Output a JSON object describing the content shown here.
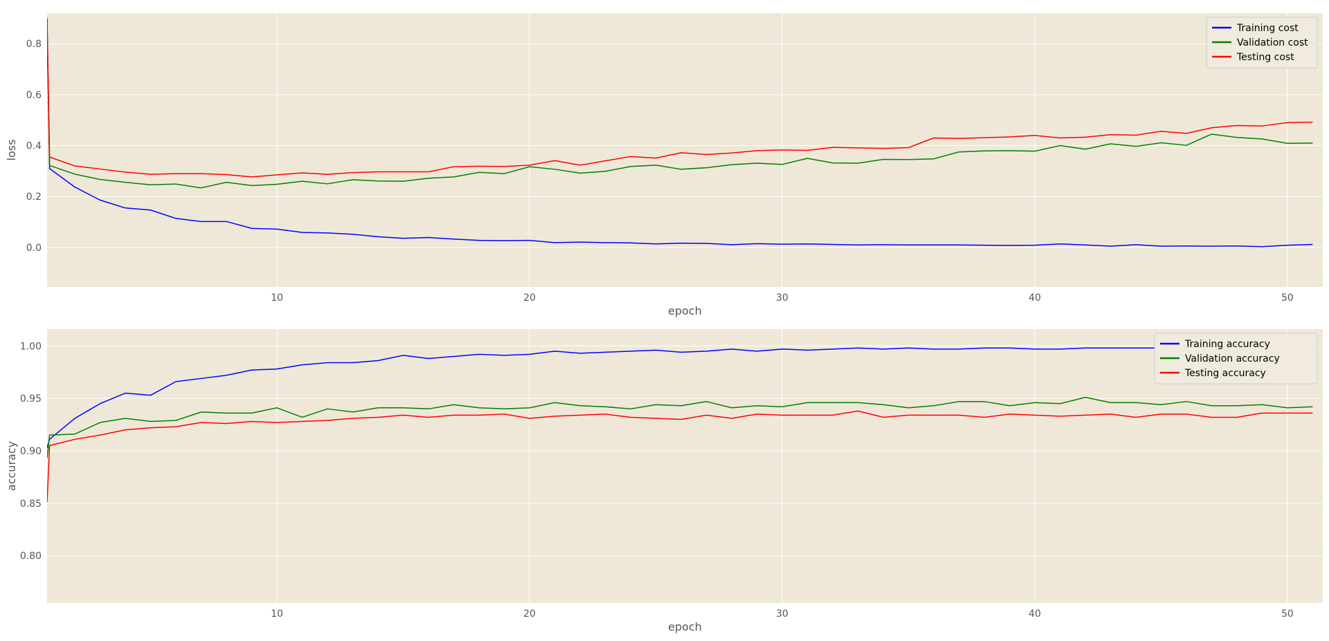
{
  "chart_data": [
    {
      "type": "line",
      "xlabel": "epoch",
      "ylabel": "loss",
      "xlim": [
        0.9,
        51.4
      ],
      "ylim": [
        -0.155,
        0.92
      ],
      "xticks": [
        10,
        20,
        30,
        40,
        50
      ],
      "yticks": [
        0.0,
        0.2,
        0.4,
        0.6,
        0.8
      ],
      "ytick_decimals": 1,
      "grid": true,
      "legend_position": "top-right",
      "x": [
        1,
        2,
        3,
        4,
        5,
        6,
        7,
        8,
        9,
        10,
        11,
        12,
        13,
        14,
        15,
        16,
        17,
        18,
        19,
        20,
        21,
        22,
        23,
        24,
        25,
        26,
        27,
        28,
        29,
        30,
        31,
        32,
        33,
        34,
        35,
        36,
        37,
        38,
        39,
        40,
        41,
        42,
        43,
        44,
        45,
        46,
        47,
        48,
        49,
        50,
        51
      ],
      "series": [
        {
          "name": "Training cost",
          "color": "#0000ff",
          "x0": 0.9,
          "y0": 0.9,
          "values": [
            0.31,
            0.237,
            0.186,
            0.155,
            0.147,
            0.114,
            0.102,
            0.102,
            0.075,
            0.072,
            0.059,
            0.057,
            0.052,
            0.042,
            0.036,
            0.039,
            0.033,
            0.028,
            0.027,
            0.028,
            0.019,
            0.021,
            0.019,
            0.018,
            0.014,
            0.017,
            0.016,
            0.011,
            0.015,
            0.013,
            0.014,
            0.012,
            0.01,
            0.011,
            0.01,
            0.01,
            0.01,
            0.009,
            0.008,
            0.009,
            0.014,
            0.01,
            0.005,
            0.011,
            0.005,
            0.006,
            0.005,
            0.006,
            0.003,
            0.009,
            0.012
          ]
        },
        {
          "name": "Validation cost",
          "color": "#008000",
          "x0": 0.9,
          "y0": 0.84,
          "values": [
            0.322,
            0.288,
            0.267,
            0.256,
            0.246,
            0.249,
            0.234,
            0.256,
            0.243,
            0.248,
            0.26,
            0.25,
            0.266,
            0.261,
            0.26,
            0.272,
            0.277,
            0.295,
            0.29,
            0.317,
            0.307,
            0.292,
            0.299,
            0.318,
            0.323,
            0.307,
            0.313,
            0.325,
            0.331,
            0.326,
            0.35,
            0.332,
            0.331,
            0.346,
            0.345,
            0.348,
            0.375,
            0.379,
            0.38,
            0.378,
            0.4,
            0.386,
            0.407,
            0.397,
            0.411,
            0.401,
            0.445,
            0.432,
            0.426,
            0.409,
            0.41
          ]
        },
        {
          "name": "Testing cost",
          "color": "#ff0000",
          "x0": 0.9,
          "y0": 0.88,
          "values": [
            0.355,
            0.32,
            0.308,
            0.296,
            0.287,
            0.29,
            0.29,
            0.286,
            0.277,
            0.285,
            0.293,
            0.287,
            0.294,
            0.297,
            0.297,
            0.297,
            0.317,
            0.319,
            0.318,
            0.323,
            0.341,
            0.323,
            0.34,
            0.357,
            0.351,
            0.372,
            0.365,
            0.371,
            0.38,
            0.383,
            0.381,
            0.393,
            0.391,
            0.389,
            0.392,
            0.43,
            0.428,
            0.431,
            0.434,
            0.44,
            0.43,
            0.433,
            0.443,
            0.441,
            0.456,
            0.448,
            0.47,
            0.479,
            0.477,
            0.49,
            0.492
          ]
        }
      ]
    },
    {
      "type": "line",
      "xlabel": "epoch",
      "ylabel": "accuracy",
      "xlim": [
        0.9,
        51.4
      ],
      "ylim": [
        0.755,
        1.016
      ],
      "xticks": [
        10,
        20,
        30,
        40,
        50
      ],
      "yticks": [
        0.8,
        0.85,
        0.9,
        0.95,
        1.0
      ],
      "ytick_decimals": 2,
      "grid": true,
      "legend_position": "top-right",
      "x": [
        1,
        2,
        3,
        4,
        5,
        6,
        7,
        8,
        9,
        10,
        11,
        12,
        13,
        14,
        15,
        16,
        17,
        18,
        19,
        20,
        21,
        22,
        23,
        24,
        25,
        26,
        27,
        28,
        29,
        30,
        31,
        32,
        33,
        34,
        35,
        36,
        37,
        38,
        39,
        40,
        41,
        42,
        43,
        44,
        45,
        46,
        47,
        48,
        49,
        50,
        51
      ],
      "series": [
        {
          "name": "Training accuracy",
          "color": "#0000ff",
          "x0": 0.9,
          "y0": 0.903,
          "values": [
            0.911,
            0.931,
            0.945,
            0.955,
            0.953,
            0.966,
            0.969,
            0.972,
            0.977,
            0.978,
            0.982,
            0.984,
            0.984,
            0.986,
            0.991,
            0.988,
            0.99,
            0.992,
            0.991,
            0.992,
            0.995,
            0.993,
            0.994,
            0.995,
            0.996,
            0.994,
            0.995,
            0.997,
            0.995,
            0.997,
            0.996,
            0.997,
            0.998,
            0.997,
            0.998,
            0.997,
            0.997,
            0.998,
            0.998,
            0.997,
            0.997,
            0.998,
            0.998,
            0.998,
            0.998,
            0.998,
            0.998,
            0.999,
            0.998,
            0.998,
            0.998
          ]
        },
        {
          "name": "Validation accuracy",
          "color": "#008000",
          "x0": 0.9,
          "y0": 0.893,
          "values": [
            0.915,
            0.916,
            0.927,
            0.931,
            0.928,
            0.929,
            0.937,
            0.936,
            0.936,
            0.941,
            0.932,
            0.94,
            0.937,
            0.941,
            0.941,
            0.94,
            0.944,
            0.941,
            0.94,
            0.941,
            0.946,
            0.943,
            0.942,
            0.94,
            0.944,
            0.943,
            0.947,
            0.941,
            0.943,
            0.942,
            0.946,
            0.946,
            0.946,
            0.944,
            0.941,
            0.943,
            0.947,
            0.947,
            0.943,
            0.946,
            0.945,
            0.951,
            0.946,
            0.946,
            0.944,
            0.947,
            0.943,
            0.943,
            0.944,
            0.941,
            0.942
          ]
        },
        {
          "name": "Testing accuracy",
          "color": "#ff0000",
          "x0": 0.9,
          "y0": 0.851,
          "values": [
            0.905,
            0.911,
            0.915,
            0.92,
            0.922,
            0.923,
            0.927,
            0.926,
            0.928,
            0.927,
            0.928,
            0.929,
            0.931,
            0.932,
            0.934,
            0.932,
            0.934,
            0.934,
            0.935,
            0.931,
            0.933,
            0.934,
            0.935,
            0.932,
            0.931,
            0.93,
            0.934,
            0.931,
            0.935,
            0.934,
            0.934,
            0.934,
            0.938,
            0.932,
            0.934,
            0.934,
            0.934,
            0.932,
            0.935,
            0.934,
            0.933,
            0.934,
            0.935,
            0.932,
            0.935,
            0.935,
            0.932,
            0.932,
            0.936,
            0.936,
            0.936
          ]
        }
      ]
    }
  ],
  "colors": {
    "plot_background": "#efe8d8",
    "grid": "#ffffff",
    "tick_text": "#555555",
    "legend_background": "#f0ebde",
    "legend_border": "#cccccc"
  }
}
